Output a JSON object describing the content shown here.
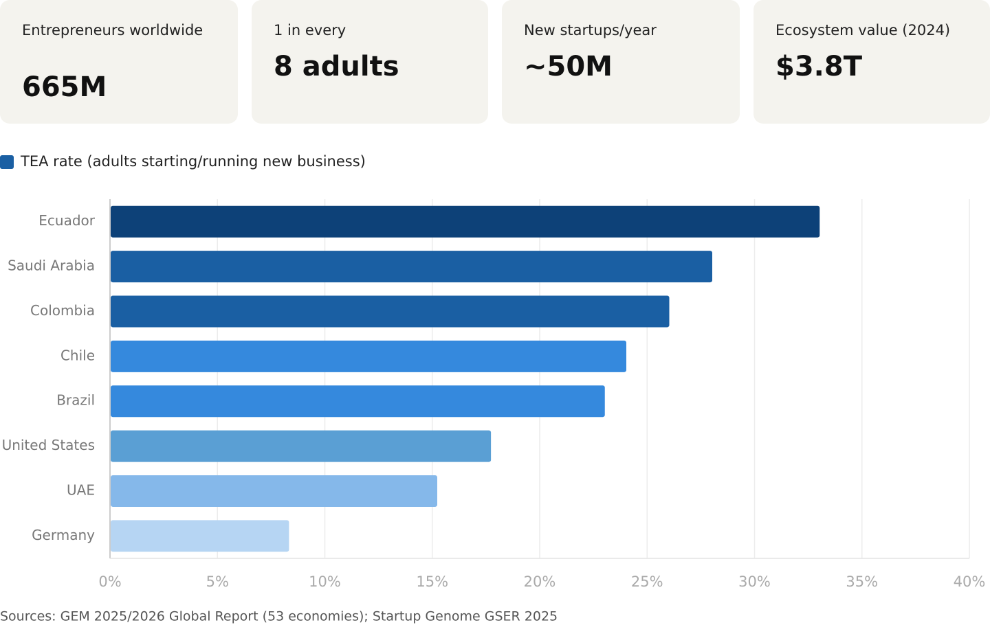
{
  "stats": [
    {
      "label": "Entrepreneurs worldwide",
      "value": "665M"
    },
    {
      "label": "1 in every",
      "value": "8 adults"
    },
    {
      "label": "New startups/year",
      "value": "~50M"
    },
    {
      "label": "Ecosystem value (2024)",
      "value": "$3.8T"
    }
  ],
  "chart_data": {
    "type": "bar",
    "orientation": "horizontal",
    "categories": [
      "Ecuador",
      "Saudi Arabia",
      "Colombia",
      "Chile",
      "Brazil",
      "United States",
      "UAE",
      "Germany"
    ],
    "series": [
      {
        "name": "TEA rate (adults starting/running new business)",
        "color": "#1a5fa3",
        "values": [
          33,
          28,
          26,
          24,
          23,
          17.7,
          15.2,
          8.3
        ],
        "colors": [
          "#0d4178",
          "#1a5fa3",
          "#1a5fa3",
          "#3589dd",
          "#3589dd",
          "#5a9fd4",
          "#85b8ea",
          "#b6d5f3"
        ]
      }
    ],
    "xlim": [
      0,
      40
    ],
    "xticks": [
      {
        "value": 0,
        "label": "0%"
      },
      {
        "value": 5,
        "label": "5%"
      },
      {
        "value": 10,
        "label": "10%"
      },
      {
        "value": 15,
        "label": "15%"
      },
      {
        "value": 20,
        "label": "20%"
      },
      {
        "value": 25,
        "label": "25%"
      },
      {
        "value": 30,
        "label": "30%"
      },
      {
        "value": 35,
        "label": "35%"
      },
      {
        "value": 40,
        "label": "40%"
      }
    ],
    "grid": true,
    "source": "Sources: GEM 2025/2026 Global Report (53 economies); Startup Genome GSER 2025"
  }
}
